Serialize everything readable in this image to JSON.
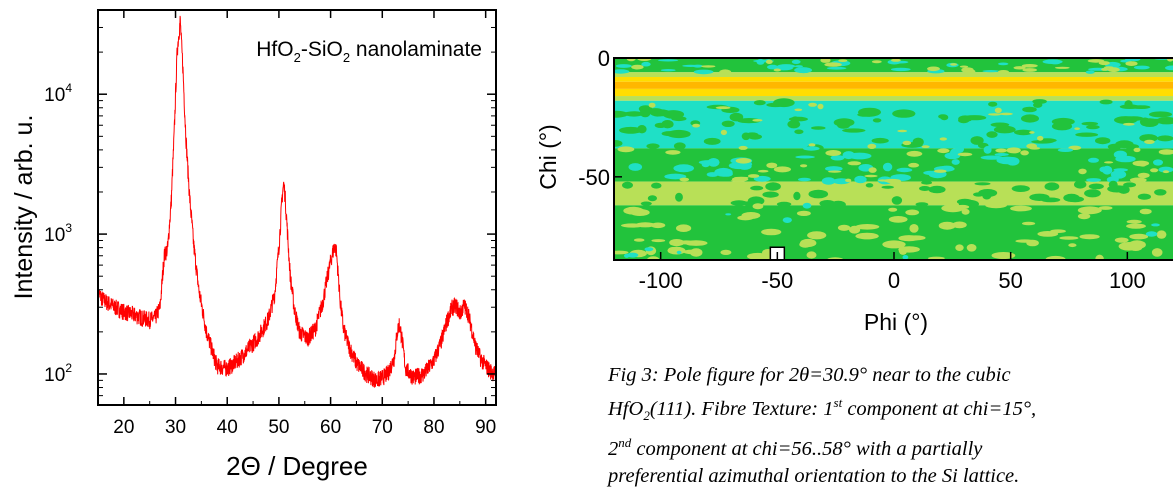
{
  "chart_data": [
    {
      "type": "line",
      "scale": {
        "y": "log"
      },
      "xlim": [
        15,
        92
      ],
      "ylim": [
        60,
        40000
      ],
      "xlabel": "2Θ / Degree",
      "ylabel": "Intensity / arb. u.",
      "xticks": [
        "20",
        "30",
        "40",
        "50",
        "60",
        "70",
        "80",
        "90"
      ],
      "yticks": [
        {
          "base": "10",
          "exp": "2",
          "value": 100
        },
        {
          "base": "10",
          "exp": "3",
          "value": 1000
        },
        {
          "base": "10",
          "exp": "4",
          "value": 10000
        }
      ],
      "annotation": {
        "main": "HfO",
        "sub1": "2",
        "mid": "-SiO",
        "sub2": "2",
        "tail": " nanolaminate"
      },
      "series_color": "#ff0000",
      "series": [
        {
          "x": [
            15,
            16,
            18,
            20,
            22,
            24,
            25,
            26,
            27,
            27.8,
            28.5,
            29.2,
            29.8,
            30.3,
            30.9,
            31.4,
            32,
            32.7,
            33.5,
            34.5,
            36,
            38,
            40,
            42,
            44,
            46,
            48,
            49.2,
            50.1,
            50.6,
            50.9,
            51.2,
            51.6,
            52.2,
            53,
            54,
            55.5,
            57,
            58.5,
            59.5,
            60.3,
            60.8,
            61.1,
            61.4,
            61.8,
            62.5,
            63.5,
            65,
            67,
            69,
            71,
            72.3,
            72.9,
            73.3,
            73.8,
            74.5,
            76,
            78,
            80,
            81.5,
            82.5,
            83.5,
            84.3,
            85,
            85.8,
            86.5,
            87.2,
            88,
            89,
            90,
            91,
            92
          ],
          "y": [
            380,
            340,
            305,
            280,
            265,
            250,
            245,
            250,
            300,
            700,
            800,
            1800,
            6000,
            20000,
            34000,
            16000,
            5000,
            1900,
            850,
            400,
            200,
            115,
            110,
            125,
            150,
            185,
            250,
            380,
            900,
            1800,
            2300,
            1900,
            1100,
            500,
            290,
            200,
            180,
            210,
            330,
            520,
            720,
            830,
            760,
            560,
            350,
            210,
            160,
            120,
            100,
            90,
            100,
            130,
            200,
            230,
            180,
            110,
            95,
            100,
            125,
            175,
            240,
            300,
            310,
            270,
            310,
            280,
            220,
            160,
            130,
            115,
            105,
            100
          ]
        }
      ]
    },
    {
      "type": "heatmap",
      "xlim": [
        -120,
        120
      ],
      "ylim": [
        -85,
        0
      ],
      "xlabel": "Phi (°)",
      "ylabel": "Chi (°)",
      "xticks": [
        "-100",
        "-50",
        "0",
        "50",
        "100"
      ],
      "yticks": [
        "0",
        "-50"
      ],
      "colors": {
        "yellow": "#ffdd00",
        "orange": "#ffb700",
        "cyan": "#1fe0c6",
        "green": "#22c33c",
        "lime": "#b8e057"
      },
      "bands": [
        {
          "chi_from": 0,
          "chi_to": -6,
          "level": "green"
        },
        {
          "chi_from": -6,
          "chi_to": -8,
          "level": "lime"
        },
        {
          "chi_from": -8,
          "chi_to": -10,
          "level": "yellow"
        },
        {
          "chi_from": -10,
          "chi_to": -13,
          "level": "orange"
        },
        {
          "chi_from": -13,
          "chi_to": -16,
          "level": "yellow"
        },
        {
          "chi_from": -16,
          "chi_to": -18,
          "level": "lime"
        },
        {
          "chi_from": -18,
          "chi_to": -38,
          "level": "cyan"
        },
        {
          "chi_from": -38,
          "chi_to": -52,
          "level": "green"
        },
        {
          "chi_from": -52,
          "chi_to": -62,
          "level": "lime"
        },
        {
          "chi_from": -62,
          "chi_to": -85,
          "level": "green"
        }
      ],
      "marker": {
        "phi": -50,
        "chi": -83
      }
    }
  ],
  "caption": {
    "l1": "Fig 3: Pole figure for 2θ=30.9° near to the cubic",
    "l2a": "HfO",
    "l2sub": "2",
    "l2b": "(111). Fibre Texture: 1",
    "l2sup": "st",
    "l2c": " component at chi=15°,",
    "l3a": "2",
    "l3sup": "nd",
    "l3b": " component at chi=56..58° with a partially",
    "l4": "preferential azimuthal orientation to the Si lattice."
  }
}
